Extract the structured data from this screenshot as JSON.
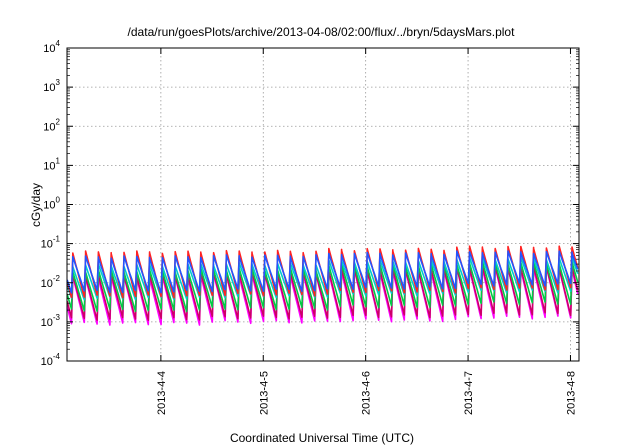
{
  "chart_data": {
    "type": "line",
    "title": "/data/run/goesPlots/archive/2013-04-08/02:00/flux/../bryn/5daysMars.plot",
    "xlabel": "Coordinated Universal Time (UTC)",
    "ylabel": "cGy/day",
    "yscale": "log",
    "ylim": [
      0.0001,
      10000
    ],
    "xlim": [
      "2013-04-03T02:00",
      "2013-04-08T02:00"
    ],
    "x_ticks": [
      "2013-4-4",
      "2013-4-5",
      "2013-4-6",
      "2013-4-7",
      "2013-4-8"
    ],
    "y_ticks": [
      {
        "base": "10",
        "exp": "-4"
      },
      {
        "base": "10",
        "exp": "-3"
      },
      {
        "base": "10",
        "exp": "-2"
      },
      {
        "base": "10",
        "exp": "-1"
      },
      {
        "base": "10",
        "exp": "0"
      },
      {
        "base": "10",
        "exp": "1"
      },
      {
        "base": "10",
        "exp": "2"
      },
      {
        "base": "10",
        "exp": "3"
      },
      {
        "base": "10",
        "exp": "4"
      }
    ],
    "grid": true,
    "legend": "none",
    "series_style": {
      "period_hours": 3,
      "note_colors": [
        "#ff00ff",
        "#cc0066",
        "#ff2222",
        "#00cccc",
        "#00cc44",
        "#2255ff"
      ]
    },
    "series": [
      {
        "color": "#ff00ff",
        "peak": [
          0.014,
          0.016,
          0.02,
          0.024
        ],
        "trough": [
          0.0009,
          0.001,
          0.0011,
          0.0013
        ]
      },
      {
        "color": "#cc0066",
        "peak": [
          0.016,
          0.018,
          0.022,
          0.026
        ],
        "trough": [
          0.0012,
          0.0013,
          0.0014,
          0.0016
        ]
      },
      {
        "color": "#00cc44",
        "peak": [
          0.02,
          0.022,
          0.028,
          0.032
        ],
        "trough": [
          0.002,
          0.0022,
          0.0025,
          0.003
        ]
      },
      {
        "color": "#00cccc",
        "peak": [
          0.028,
          0.03,
          0.036,
          0.042
        ],
        "trough": [
          0.004,
          0.0045,
          0.005,
          0.006
        ]
      },
      {
        "color": "#ff2222",
        "peak": [
          0.06,
          0.062,
          0.07,
          0.08
        ],
        "trough": [
          0.0045,
          0.005,
          0.006,
          0.007
        ]
      },
      {
        "color": "#2255ff",
        "peak": [
          0.045,
          0.048,
          0.055,
          0.06
        ],
        "trough": [
          0.006,
          0.0065,
          0.0075,
          0.009
        ]
      }
    ]
  }
}
